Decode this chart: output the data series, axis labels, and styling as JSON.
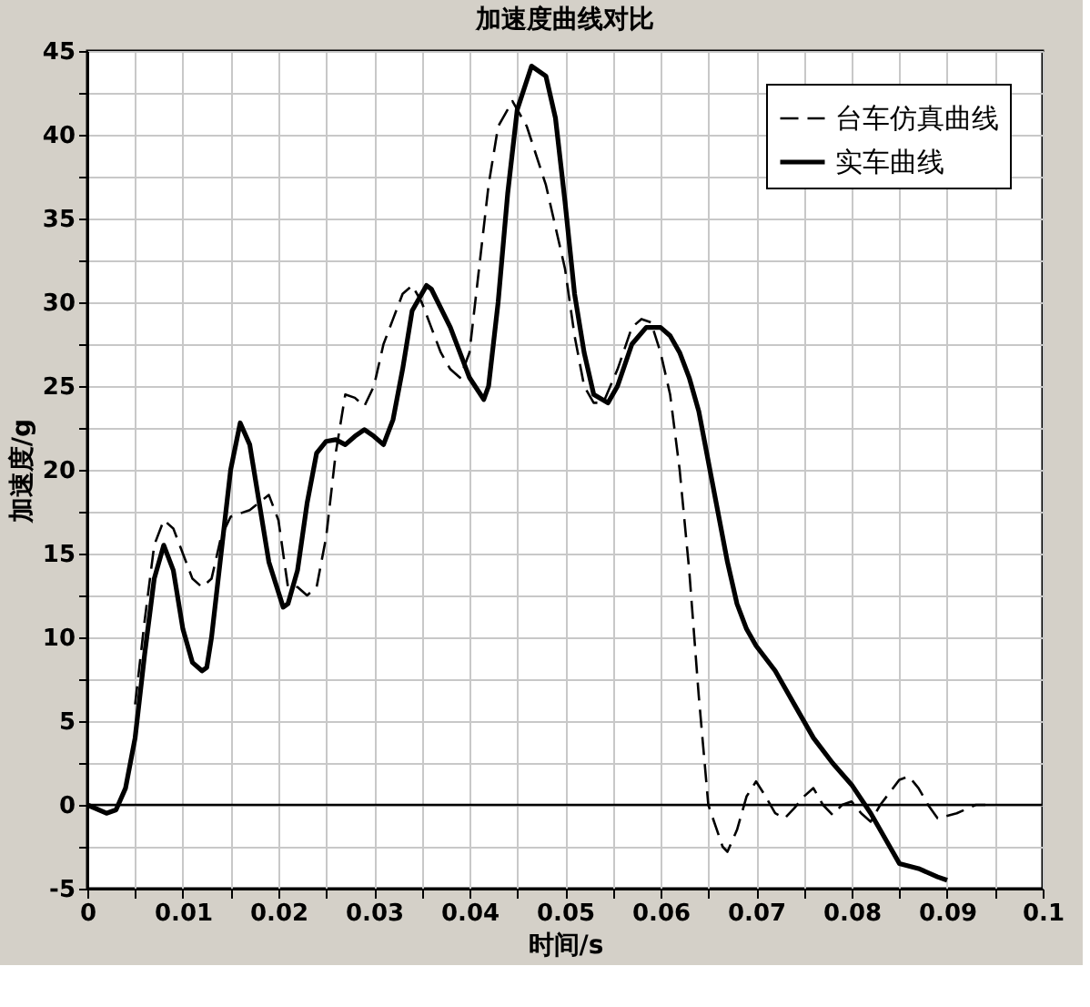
{
  "chart_data": {
    "type": "line",
    "title": "加速度曲线对比",
    "xlabel": "时间/s",
    "ylabel": "加速度/g",
    "xlim": [
      0,
      0.1
    ],
    "ylim": [
      -5,
      45
    ],
    "xticks": [
      0,
      {
        "value": 0.005,
        "label": null
      },
      0.01,
      {
        "value": 0.015,
        "label": null
      },
      0.02,
      {
        "value": 0.025,
        "label": null
      },
      0.03,
      {
        "value": 0.035,
        "label": null
      },
      0.04,
      {
        "value": 0.045,
        "label": null
      },
      0.05,
      {
        "value": 0.055,
        "label": null
      },
      0.06,
      {
        "value": 0.065,
        "label": null
      },
      0.07,
      {
        "value": 0.075,
        "label": null
      },
      0.08,
      {
        "value": 0.085,
        "label": null
      },
      0.09,
      {
        "value": 0.095,
        "label": null
      },
      0.1
    ],
    "yticks": [
      -5,
      {
        "value": -2.5,
        "label": null
      },
      0,
      {
        "value": 2.5,
        "label": null
      },
      5,
      {
        "value": 7.5,
        "label": null
      },
      10,
      {
        "value": 12.5,
        "label": null
      },
      15,
      {
        "value": 17.5,
        "label": null
      },
      20,
      {
        "value": 22.5,
        "label": null
      },
      25,
      {
        "value": 27.5,
        "label": null
      },
      30,
      {
        "value": 32.5,
        "label": null
      },
      35,
      {
        "value": 37.5,
        "label": null
      },
      40,
      {
        "value": 42.5,
        "label": null
      },
      45
    ],
    "grid": true,
    "legend": "top right",
    "marker": "none",
    "ref_lines": [
      {
        "axis": "y",
        "value": 0,
        "color": "#000000",
        "line_style": "solid"
      }
    ],
    "series": [
      {
        "name": "台车仿真曲线",
        "color": "#000000",
        "line_style": "dashed",
        "x": [
          0.005,
          0.006,
          0.007,
          0.008,
          0.009,
          0.01,
          0.011,
          0.012,
          0.013,
          0.014,
          0.015,
          0.017,
          0.019,
          0.02,
          0.021,
          0.022,
          0.023,
          0.024,
          0.025,
          0.026,
          0.027,
          0.028,
          0.029,
          0.03,
          0.031,
          0.032,
          0.033,
          0.034,
          0.035,
          0.036,
          0.037,
          0.038,
          0.039,
          0.04,
          0.041,
          0.042,
          0.043,
          0.0445,
          0.045,
          0.046,
          0.048,
          0.05,
          0.051,
          0.052,
          0.053,
          0.054,
          0.0555,
          0.057,
          0.058,
          0.059,
          0.06,
          0.061,
          0.062,
          0.063,
          0.064,
          0.065,
          0.0665,
          0.067,
          0.068,
          0.069,
          0.07,
          0.071,
          0.072,
          0.073,
          0.074,
          0.075,
          0.076,
          0.077,
          0.078,
          0.079,
          0.08,
          0.081,
          0.082,
          0.083,
          0.085,
          0.086,
          0.087,
          0.088,
          0.089,
          0.091,
          0.093,
          0.094
        ],
        "values": [
          6,
          11,
          15.5,
          17,
          16.5,
          15,
          13.5,
          13,
          13.5,
          16,
          17.2,
          17.6,
          18.5,
          17,
          13,
          13,
          12.5,
          13,
          16,
          21,
          24.5,
          24.3,
          23.8,
          25,
          27.5,
          29,
          30.5,
          31,
          30,
          28.5,
          27,
          26,
          25.5,
          27,
          32,
          37,
          40.5,
          42,
          41.5,
          40.5,
          37,
          32,
          28,
          25,
          24,
          24,
          26,
          28.5,
          29,
          28.8,
          27,
          24.5,
          20,
          14,
          6.5,
          0,
          -2.5,
          -2.8,
          -1.5,
          0.5,
          1.4,
          0.5,
          -0.5,
          -0.8,
          -0.2,
          0.5,
          1,
          0,
          -0.6,
          0,
          0.2,
          -0.5,
          -1,
          0,
          1.5,
          1.7,
          1,
          0,
          -0.8,
          -0.5,
          0,
          0
        ]
      },
      {
        "name": "实车曲线",
        "color": "#000000",
        "line_style": "solid",
        "x": [
          0,
          0.002,
          0.003,
          0.004,
          0.005,
          0.006,
          0.007,
          0.008,
          0.009,
          0.01,
          0.011,
          0.012,
          0.0125,
          0.013,
          0.014,
          0.015,
          0.016,
          0.017,
          0.018,
          0.019,
          0.0205,
          0.021,
          0.022,
          0.023,
          0.024,
          0.025,
          0.026,
          0.027,
          0.028,
          0.029,
          0.03,
          0.031,
          0.032,
          0.033,
          0.034,
          0.0355,
          0.036,
          0.038,
          0.04,
          0.0415,
          0.042,
          0.043,
          0.044,
          0.045,
          0.0465,
          0.048,
          0.049,
          0.05,
          0.051,
          0.052,
          0.053,
          0.0545,
          0.0555,
          0.057,
          0.0585,
          0.06,
          0.061,
          0.062,
          0.063,
          0.064,
          0.065,
          0.066,
          0.067,
          0.068,
          0.069,
          0.07,
          0.072,
          0.074,
          0.076,
          0.078,
          0.08,
          0.082,
          0.084,
          0.085,
          0.087,
          0.089,
          0.09
        ],
        "values": [
          0,
          -0.5,
          -0.3,
          1,
          4,
          9,
          13.5,
          15.5,
          14,
          10.5,
          8.5,
          8,
          8.2,
          10,
          15,
          20,
          22.8,
          21.5,
          18,
          14.5,
          11.8,
          12,
          14,
          18,
          21,
          21.7,
          21.8,
          21.5,
          22,
          22.4,
          22,
          21.5,
          23,
          26,
          29.5,
          31,
          30.8,
          28.5,
          25.5,
          24.2,
          25,
          30,
          36.5,
          41.5,
          44.1,
          43.5,
          41,
          36,
          30.5,
          27,
          24.5,
          24,
          25,
          27.5,
          28.5,
          28.5,
          28,
          27,
          25.5,
          23.5,
          20.5,
          17.5,
          14.5,
          12,
          10.5,
          9.5,
          8,
          6,
          4,
          2.5,
          1.2,
          -0.5,
          -2.5,
          -3.5,
          -3.8,
          -4.3,
          -4.5
        ]
      }
    ]
  }
}
